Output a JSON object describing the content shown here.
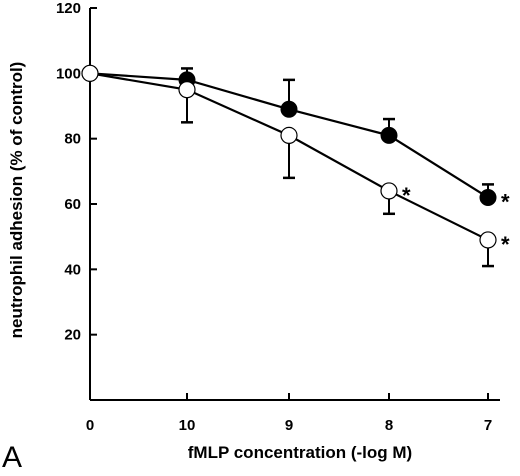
{
  "panel_label": "A",
  "chart_data": {
    "type": "line",
    "xlabel": "fMLP concentration (-log M)",
    "ylabel": "neutrophil adhesion (% of control)",
    "categories": [
      "0",
      "10",
      "9",
      "8",
      "7"
    ],
    "ylim": [
      0,
      120
    ],
    "yticks": [
      "20",
      "40",
      "60",
      "80",
      "100",
      "120"
    ],
    "grid": false,
    "legend": "none",
    "series": [
      {
        "marker": "filled-circle",
        "color": "#000000",
        "values": [
          100,
          98,
          89,
          81,
          62
        ],
        "error_bars": [
          {
            "index": 1,
            "upper": 101.5
          },
          {
            "index": 2,
            "upper": 98
          },
          {
            "index": 3,
            "upper": 86
          },
          {
            "index": 4,
            "upper": 66
          }
        ],
        "significance": [
          "",
          "",
          "",
          "",
          "*"
        ]
      },
      {
        "marker": "open-circle",
        "color": "#000000",
        "values": [
          100,
          95,
          81,
          64,
          49
        ],
        "error_bars": [
          {
            "index": 1,
            "lower": 85
          },
          {
            "index": 2,
            "lower": 68
          },
          {
            "index": 3,
            "lower": 57
          },
          {
            "index": 4,
            "lower": 41
          }
        ],
        "significance": [
          "",
          "",
          "",
          "*",
          "*"
        ]
      }
    ]
  }
}
